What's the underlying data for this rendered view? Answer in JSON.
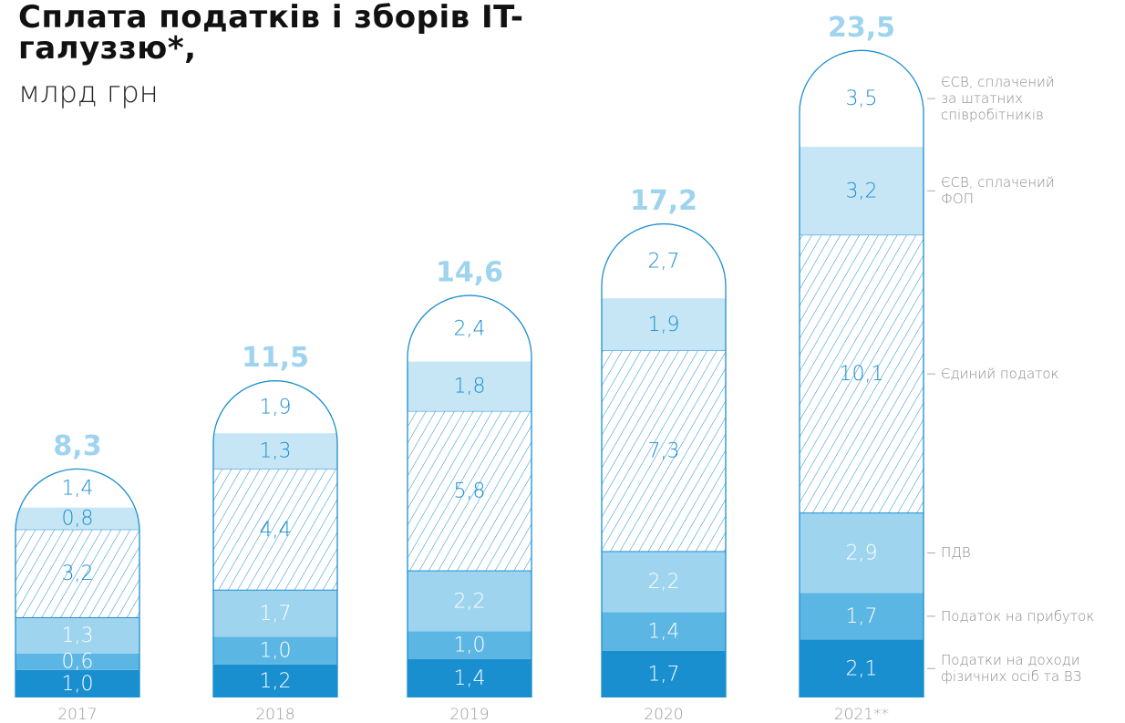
{
  "chart_data": {
    "type": "stacked_bar",
    "title": "Сплата податків і зборів IT-галуззю*,",
    "subtitle": "млрд грн",
    "categories": [
      "2017",
      "2018",
      "2019",
      "2020",
      "2021**"
    ],
    "ylim": [
      0,
      25
    ],
    "totals": [
      8.3,
      11.5,
      14.6,
      17.2,
      23.5
    ],
    "total_labels": [
      "8,3",
      "11,5",
      "14,6",
      "17,2",
      "23,5"
    ],
    "series": [
      {
        "name": "Податки на доходи фізичних осіб та ВЗ",
        "color": "#1a8fd0",
        "label_color": "#ffffff",
        "values": [
          1.0,
          1.2,
          1.4,
          1.7,
          2.1
        ],
        "value_labels": [
          "1,0",
          "1,2",
          "1,4",
          "1,7",
          "2,1"
        ]
      },
      {
        "name": "Податок на прибуток",
        "color": "#5cb6e3",
        "label_color": "#ffffff",
        "values": [
          0.6,
          1.0,
          1.0,
          1.4,
          1.7
        ],
        "value_labels": [
          "0,6",
          "1,0",
          "1,0",
          "1,4",
          "1,7"
        ]
      },
      {
        "name": "ПДВ",
        "color": "#9fd4ef",
        "label_color": "#ffffff",
        "values": [
          1.3,
          1.7,
          2.2,
          2.2,
          2.9
        ],
        "value_labels": [
          "1,3",
          "1,7",
          "2,2",
          "2,2",
          "2,9"
        ]
      },
      {
        "name": "Єдиний податок",
        "color": "hatch",
        "label_color": "#1a8fd0",
        "values": [
          3.2,
          4.4,
          5.8,
          7.3,
          10.1
        ],
        "value_labels": [
          "3,2",
          "4,4",
          "5,8",
          "7,3",
          "10,1"
        ]
      },
      {
        "name": "ЄСВ, сплачений ФОП",
        "color": "#c6e6f6",
        "label_color": "#1a8fd0",
        "values": [
          0.8,
          1.3,
          1.8,
          1.9,
          3.2
        ],
        "value_labels": [
          "0,8",
          "1,3",
          "1,8",
          "1,9",
          "3,2"
        ]
      },
      {
        "name": "ЄСВ, сплачений за штатних співробітників",
        "color": "#ffffff",
        "label_color": "#1a8fd0",
        "values": [
          1.4,
          1.9,
          2.4,
          2.7,
          3.5
        ],
        "value_labels": [
          "1,4",
          "1,9",
          "2,4",
          "2,7",
          "3,5"
        ]
      }
    ]
  }
}
